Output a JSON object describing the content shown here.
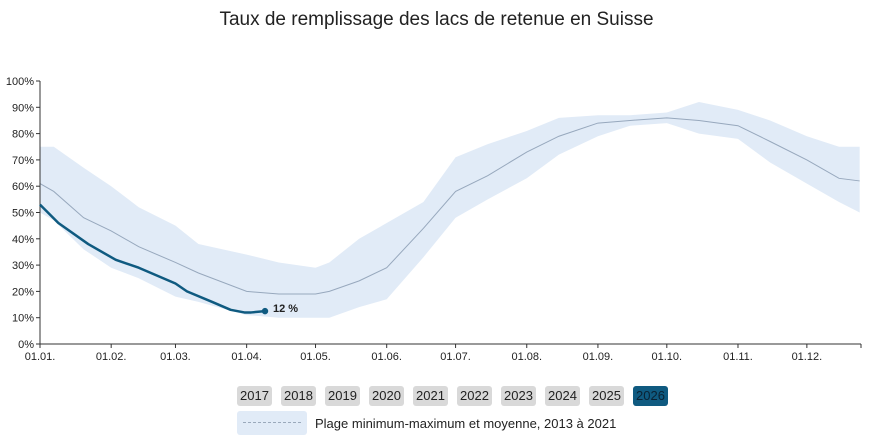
{
  "chart_data": {
    "type": "line",
    "title": "Taux de remplissage des lacs de retenue en Suisse",
    "xlabel": "",
    "ylabel": "",
    "ylim": [
      0,
      100
    ],
    "x_ticks": [
      "01.01.",
      "01.02.",
      "01.03.",
      "01.04.",
      "01.05.",
      "01.06.",
      "01.07.",
      "01.08.",
      "01.09.",
      "01.10.",
      "01.11.",
      "01.12."
    ],
    "y_ticks": [
      "0%",
      "10%",
      "20%",
      "30%",
      "40%",
      "50%",
      "60%",
      "70%",
      "80%",
      "90%",
      "100%"
    ],
    "grid": false,
    "range_band": {
      "name": "Plage minimum-maximum et moyenne, 2013 à 2021",
      "color": "#e1ebf7",
      "mean_color": "#97a8bd",
      "x": [
        "01.01.",
        "07.01.",
        "20.01.",
        "01.02.",
        "13.02.",
        "01.03.",
        "11.03.",
        "01.04.",
        "15.04.",
        "01.05.",
        "07.05.",
        "20.05.",
        "01.06.",
        "17.06.",
        "01.07.",
        "15.07.",
        "01.08.",
        "15.08.",
        "01.09.",
        "15.09.",
        "01.10.",
        "15.10.",
        "01.11.",
        "15.11.",
        "01.12.",
        "15.12.",
        "24.12."
      ],
      "min": [
        50,
        47,
        36,
        29,
        25,
        18,
        16,
        11,
        10,
        10,
        10,
        14,
        17,
        33,
        48,
        55,
        63,
        72,
        79,
        83,
        84,
        80,
        78,
        69,
        61,
        54,
        50
      ],
      "mean": [
        61,
        58,
        48,
        43,
        37,
        31,
        27,
        20,
        19,
        19,
        20,
        24,
        29,
        44,
        58,
        64,
        73,
        79,
        84,
        85,
        86,
        85,
        83,
        77,
        70,
        63,
        62
      ],
      "max": [
        75,
        75,
        67,
        60,
        52,
        45,
        38,
        34,
        31,
        29,
        31,
        40,
        46,
        54,
        71,
        76,
        81,
        86,
        87,
        87,
        88,
        92,
        89,
        85,
        79,
        75,
        75
      ]
    },
    "series": [
      {
        "name": "2026",
        "color": "#0f5a80",
        "x": [
          "01.01.",
          "09.01.",
          "22.01.",
          "03.02.",
          "13.02.",
          "01.03.",
          "06.03.",
          "17.03.",
          "25.03.",
          "31.03.",
          "03.04.",
          "09.04."
        ],
        "values": [
          53,
          46,
          38,
          32,
          29,
          23,
          20,
          16,
          13,
          12,
          12,
          12.5
        ]
      }
    ],
    "annotation": "12 %"
  },
  "years": [
    {
      "label": "2017",
      "active": false
    },
    {
      "label": "2018",
      "active": false
    },
    {
      "label": "2019",
      "active": false
    },
    {
      "label": "2020",
      "active": false
    },
    {
      "label": "2021",
      "active": false
    },
    {
      "label": "2022",
      "active": false
    },
    {
      "label": "2023",
      "active": false
    },
    {
      "label": "2024",
      "active": false
    },
    {
      "label": "2025",
      "active": false
    },
    {
      "label": "2026",
      "active": true
    }
  ],
  "legend": {
    "label": "Plage minimum-maximum et moyenne, 2013 à 2021"
  }
}
